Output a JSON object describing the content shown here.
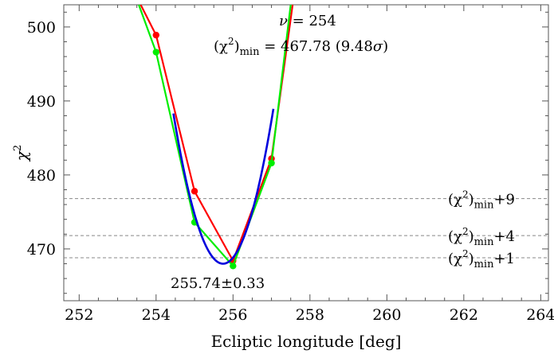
{
  "chart_data": {
    "type": "line",
    "xlabel": "Ecliptic longitude [deg]",
    "ylabel": "χ",
    "ylabel_sup": "2",
    "xlim": [
      251.6,
      264.2
    ],
    "ylim": [
      463,
      503
    ],
    "xticks": [
      "252",
      "254",
      "256",
      "258",
      "260",
      "262",
      "264"
    ],
    "yticks": [
      "470",
      "480",
      "490",
      "500"
    ],
    "grid": false,
    "series": [
      {
        "color": "#ff0000",
        "points": [
          [
            253.6,
            503
          ],
          [
            254,
            498.9
          ],
          [
            255,
            477.8
          ],
          [
            256,
            468.4
          ],
          [
            257,
            482.2
          ],
          [
            257.55,
            503
          ]
        ]
      },
      {
        "color": "#00ee00",
        "points": [
          [
            253.55,
            503
          ],
          [
            254,
            496.6
          ],
          [
            255,
            473.6
          ],
          [
            256,
            467.7
          ],
          [
            257,
            481.6
          ],
          [
            257.5,
            503
          ]
        ]
      },
      {
        "color": "#0000dd",
        "fit": {
          "vertex_x": 255.74,
          "vertex_y": 468.0,
          "curvature": 12.2,
          "x_range": [
            254.45,
            257.05
          ]
        }
      }
    ],
    "reference_lines": [
      {
        "y": 476.8,
        "label": "(χ",
        "sup": "2",
        "sub": "min",
        "suffix": "+9"
      },
      {
        "y": 471.8,
        "label": "(χ",
        "sup": "2",
        "sub": "min",
        "suffix": "+4"
      },
      {
        "y": 468.8,
        "label": "(χ",
        "sup": "2",
        "sub": "min",
        "suffix": "+1"
      }
    ],
    "annotations": {
      "nu_symbol": "ν",
      "nu_value": " = 254",
      "chi_label": "(χ",
      "chi_sup": "2",
      "chi_close": ")",
      "chi_sub": "min",
      "chi_value": " = 467.78 (9.48",
      "sigma": "σ",
      "chi_end": ")",
      "fit_result": "255.74±0.33"
    }
  }
}
